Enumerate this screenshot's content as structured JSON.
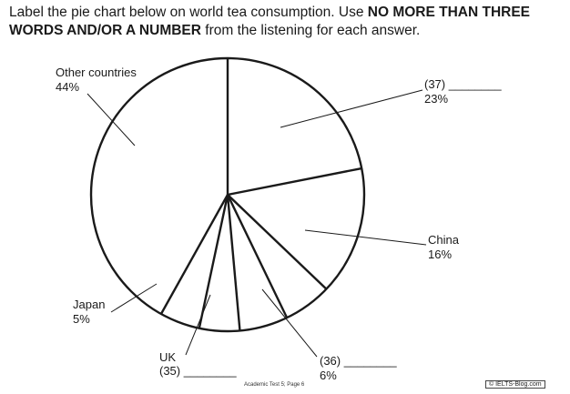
{
  "instructions": {
    "part1": "Label the pie chart below on world tea consumption. Use ",
    "bold1": "NO MORE THAN THREE WORDS AND/OR A NUMBER",
    "part2": " from the listening for each answer."
  },
  "chart_data": {
    "type": "pie",
    "title": "",
    "slices": [
      {
        "label": "(37) ________",
        "value": 23,
        "value_label": "23%"
      },
      {
        "label": "China",
        "value": 16,
        "value_label": "16%"
      },
      {
        "label": "(36) ________",
        "value": 6,
        "value_label": "6%"
      },
      {
        "label": "",
        "value": 6,
        "value_label": ""
      },
      {
        "label": "(35) ________",
        "value": 5,
        "value_label": ""
      },
      {
        "label": "Japan",
        "value": 5,
        "value_label": "5%"
      },
      {
        "label": "Other countries",
        "value": 44,
        "value_label": "44%"
      }
    ],
    "callouts": [
      {
        "name": "label-q37",
        "title": "(37) ________",
        "value": "23%"
      },
      {
        "name": "label-china",
        "title": "China",
        "value": "16%"
      },
      {
        "name": "label-q36",
        "title": "(36) ________",
        "value": "6%"
      },
      {
        "name": "label-uk",
        "title": "UK",
        "value": "(35) ________"
      },
      {
        "name": "label-japan",
        "title": "Japan",
        "value": "5%"
      },
      {
        "name": "label-other",
        "title": "Other countries",
        "value": "44%"
      }
    ]
  },
  "footer": "Academic Test 5; Page 6",
  "watermark": "© IELTS-Blog.com"
}
